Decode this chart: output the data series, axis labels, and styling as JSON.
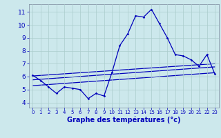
{
  "xlabel": "Graphe des températures (°c)",
  "bg_color": "#cce8ec",
  "grid_color": "#aacccc",
  "line_color": "#0000bb",
  "xlim": [
    -0.5,
    23.5
  ],
  "ylim": [
    3.6,
    11.6
  ],
  "xticks": [
    0,
    1,
    2,
    3,
    4,
    5,
    6,
    7,
    8,
    9,
    10,
    11,
    12,
    13,
    14,
    15,
    16,
    17,
    18,
    19,
    20,
    21,
    22,
    23
  ],
  "yticks": [
    4,
    5,
    6,
    7,
    8,
    9,
    10,
    11
  ],
  "temp_curve_x": [
    0,
    1,
    2,
    3,
    4,
    5,
    6,
    7,
    8,
    9,
    10,
    11,
    12,
    13,
    14,
    15,
    16,
    17,
    18,
    19,
    20,
    21,
    22,
    23
  ],
  "temp_curve_y": [
    6.1,
    5.7,
    5.2,
    4.7,
    5.2,
    5.1,
    5.0,
    4.3,
    4.7,
    4.5,
    6.3,
    8.4,
    9.3,
    10.7,
    10.6,
    11.2,
    10.1,
    9.0,
    7.7,
    7.6,
    7.3,
    6.8,
    7.7,
    6.2
  ],
  "reg_line1_start": 6.05,
  "reg_line1_end": 7.0,
  "reg_line2_start": 5.75,
  "reg_line2_end": 6.75,
  "reg_line3_start": 5.3,
  "reg_line3_end": 6.3,
  "xlabel_fontsize": 7,
  "tick_fontsize": 6
}
